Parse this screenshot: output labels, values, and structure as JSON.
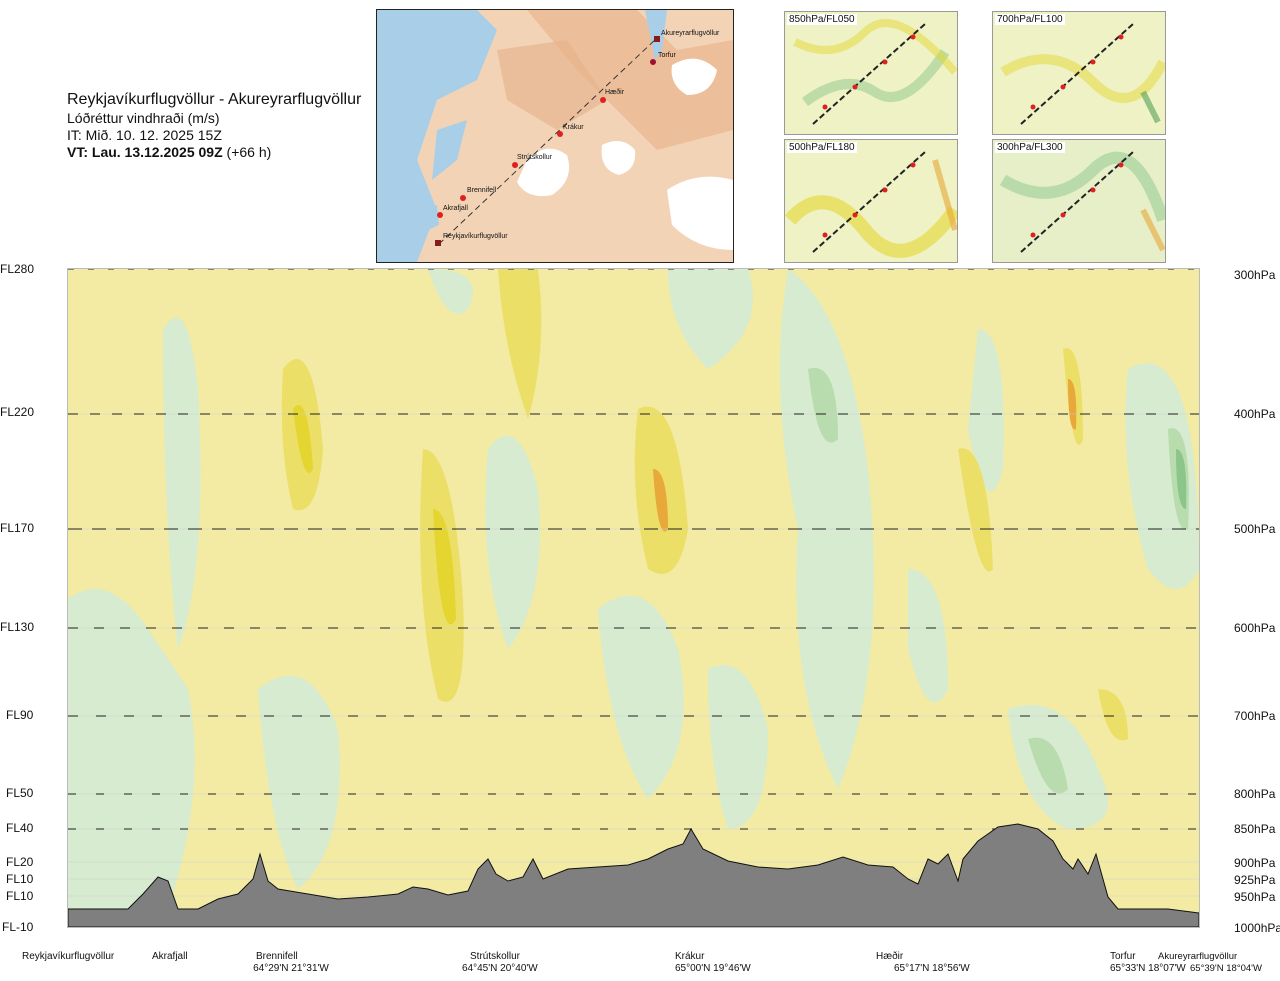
{
  "title": {
    "route": "Reykjavíkurflugvöllur - Akureyrarflugvöllur",
    "product": "Lóðréttur vindhraði (m/s)",
    "issue_time": "IT: Mið. 10. 12. 2025 15Z",
    "valid_bold": "VT: Lau. 13.12.2025 09Z",
    "valid_offset": " (+66 h)"
  },
  "map": {
    "labels": [
      "Akureyrarflugvöllur",
      "Torfur",
      "Hæðir",
      "Krákur",
      "Strútskollur",
      "Brennifell",
      "Akrafjall",
      "Reykjavíkurflugvöllur"
    ]
  },
  "mini_maps": [
    {
      "label": "850hPa/FL050"
    },
    {
      "label": "700hPa/FL100"
    },
    {
      "label": "500hPa/FL180"
    },
    {
      "label": "300hPa/FL300"
    }
  ],
  "levels_left": [
    "FL280",
    "FL220",
    "FL170",
    "FL130",
    "FL90",
    "FL50",
    "FL40",
    "FL20",
    "FL10",
    "FL10",
    "FL-10"
  ],
  "levels_right": [
    "300hPa",
    "400hPa",
    "500hPa",
    "600hPa",
    "700hPa",
    "800hPa",
    "850hPa",
    "900hPa",
    "925hPa",
    "950hPa",
    "1000hPa"
  ],
  "waypoints": [
    {
      "name": "Reykjavíkurflugvöllur",
      "coord": ""
    },
    {
      "name": "Akrafjall",
      "coord": ""
    },
    {
      "name": "Brennifell",
      "coord": "64°29'N 21°31'W"
    },
    {
      "name": "Strútskollur",
      "coord": "64°45'N 20°40'W"
    },
    {
      "name": "Krákur",
      "coord": "65°00'N 19°46'W"
    },
    {
      "name": "Hæðir",
      "coord": "65°17'N 18°56'W"
    },
    {
      "name": "Torfur",
      "coord": "65°33'N 18°07'W"
    },
    {
      "name": "Akureyrarflugvöllur",
      "coord": "65°39'N 18°04'W"
    }
  ],
  "colors": {
    "yellow_light": "#f3eba4",
    "yellow_mid": "#ecdf68",
    "yellow_strong": "#e4d531",
    "orange": "#e8a83a",
    "green_light": "#d6ebcf",
    "green_mid": "#b8dcae",
    "green_dark": "#8cc58a",
    "terrain": "#7f7f7f"
  },
  "chart_data": {
    "type": "heatmap",
    "title": "Lóðréttur vindhraði (m/s)",
    "x_categories": [
      "Reykjavíkurflugvöllur",
      "Akrafjall",
      "Brennifell",
      "Strútskollur",
      "Krákur",
      "Hæðir",
      "Torfur",
      "Akureyrarflugvöllur"
    ],
    "y_levels_hPa": [
      1000,
      950,
      925,
      900,
      850,
      800,
      700,
      600,
      500,
      400,
      300
    ],
    "y_levels_FL": [
      "FL-10",
      "FL10",
      "FL10",
      "FL20",
      "FL40",
      "FL50",
      "FL90",
      "FL130",
      "FL170",
      "FL220",
      "FL280"
    ]
  }
}
